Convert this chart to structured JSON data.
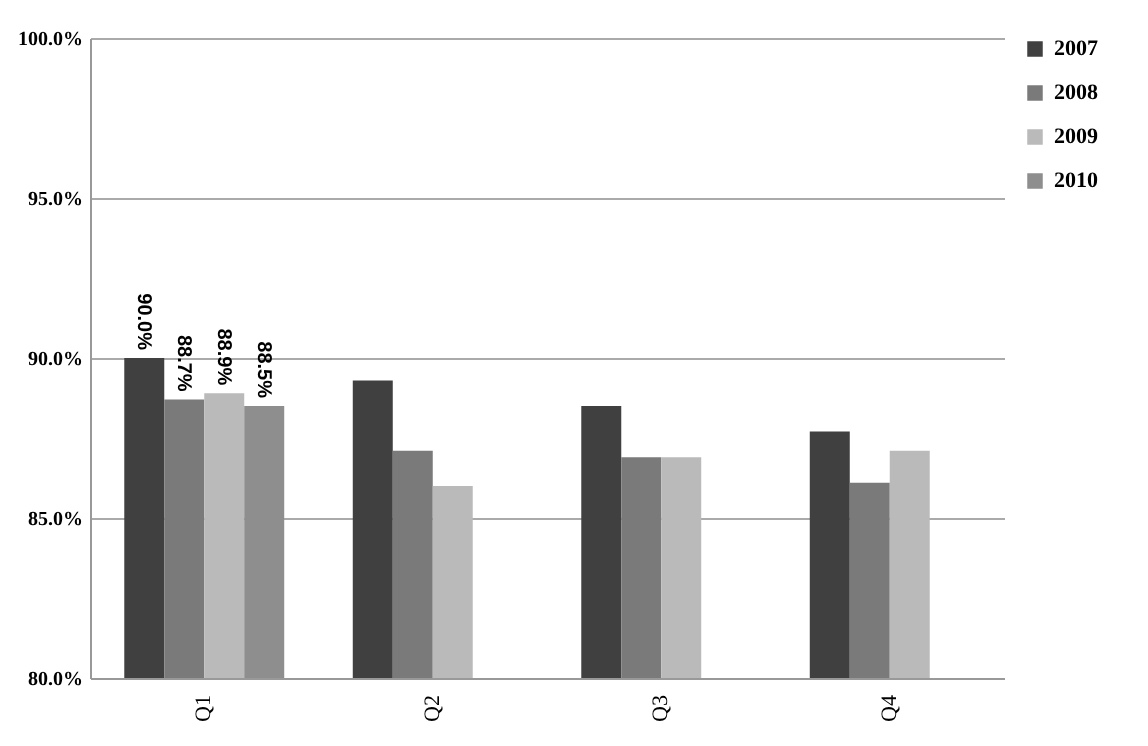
{
  "chart_data": {
    "type": "bar",
    "categories": [
      "Q1",
      "Q2",
      "Q3",
      "Q4"
    ],
    "series": [
      {
        "name": "2007",
        "color": "#404040",
        "values": [
          90.0,
          89.3,
          88.5,
          87.7
        ],
        "value_labels": [
          "90.0%",
          null,
          null,
          null
        ]
      },
      {
        "name": "2008",
        "color": "#7a7a7a",
        "values": [
          88.7,
          87.1,
          86.9,
          86.1
        ],
        "value_labels": [
          "88.7%",
          null,
          null,
          null
        ]
      },
      {
        "name": "2009",
        "color": "#bababa",
        "values": [
          88.9,
          86.0,
          86.9,
          87.1
        ],
        "value_labels": [
          "88.9%",
          null,
          null,
          null
        ]
      },
      {
        "name": "2010",
        "color": "#8e8e8e",
        "values": [
          88.5,
          null,
          null,
          null
        ],
        "value_labels": [
          "88.5%",
          null,
          null,
          null
        ]
      }
    ],
    "ylim": [
      80,
      100
    ],
    "yticks": [
      {
        "value": 80,
        "label": "80.0%"
      },
      {
        "value": 85,
        "label": "85.0%"
      },
      {
        "value": 90,
        "label": "90.0%"
      },
      {
        "value": 95,
        "label": "95.0%"
      },
      {
        "value": 100,
        "label": "100.0%"
      }
    ],
    "grid": "y",
    "legend": "right"
  }
}
